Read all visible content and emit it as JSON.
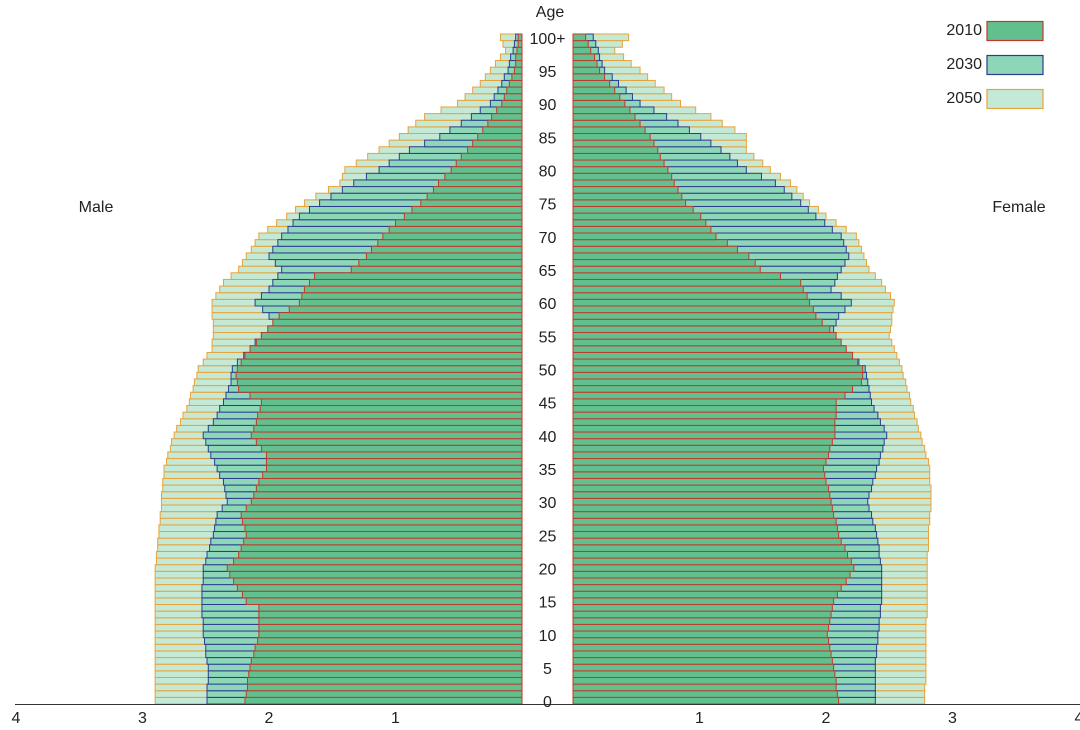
{
  "chart_data": {
    "type": "population_pyramid",
    "ylabel": "Age",
    "male_label": "Male",
    "female_label": "Female",
    "xlim": [
      0,
      4
    ],
    "xticks": [
      1,
      2,
      3,
      4
    ],
    "legend": "top-right",
    "categories": [
      "0",
      null,
      null,
      null,
      null,
      "5",
      null,
      null,
      null,
      null,
      "10",
      null,
      null,
      null,
      null,
      "15",
      null,
      null,
      null,
      null,
      "20",
      null,
      null,
      null,
      null,
      "25",
      null,
      null,
      null,
      null,
      "30",
      null,
      null,
      null,
      null,
      "35",
      null,
      null,
      null,
      null,
      "40",
      null,
      null,
      null,
      null,
      "45",
      null,
      null,
      null,
      null,
      "50",
      null,
      null,
      null,
      null,
      "55",
      null,
      null,
      null,
      null,
      "60",
      null,
      null,
      null,
      null,
      "65",
      null,
      null,
      null,
      null,
      "70",
      null,
      null,
      null,
      null,
      "75",
      null,
      null,
      null,
      null,
      "80",
      null,
      null,
      null,
      null,
      "85",
      null,
      null,
      null,
      null,
      "90",
      null,
      null,
      null,
      null,
      "95",
      null,
      null,
      null,
      null,
      "100+"
    ],
    "series": [
      {
        "name": "2010",
        "color": "#62c08f",
        "edge": "#c0392b",
        "male": [
          2.19,
          2.18,
          2.17,
          2.17,
          2.16,
          2.15,
          2.14,
          2.12,
          2.11,
          2.09,
          2.08,
          2.08,
          2.08,
          2.08,
          2.08,
          2.18,
          2.21,
          2.25,
          2.28,
          2.31,
          2.33,
          2.28,
          2.24,
          2.22,
          2.2,
          2.18,
          2.19,
          2.21,
          2.22,
          2.18,
          2.14,
          2.12,
          2.1,
          2.08,
          2.05,
          2.02,
          2.02,
          2.02,
          2.06,
          2.1,
          2.14,
          2.12,
          2.1,
          2.09,
          2.07,
          2.06,
          2.15,
          2.24,
          2.25,
          2.26,
          2.25,
          2.22,
          2.19,
          2.15,
          2.1,
          2.06,
          2.01,
          1.97,
          1.92,
          1.84,
          1.76,
          1.74,
          1.72,
          1.68,
          1.64,
          1.35,
          1.29,
          1.23,
          1.19,
          1.14,
          1.1,
          1.05,
          1.0,
          0.93,
          0.87,
          0.8,
          0.75,
          0.7,
          0.66,
          0.61,
          0.56,
          0.52,
          0.48,
          0.43,
          0.39,
          0.35,
          0.31,
          0.27,
          0.24,
          0.2,
          0.16,
          0.14,
          0.12,
          0.1,
          0.08,
          0.06,
          0.05,
          0.05,
          0.04,
          0.03,
          0.03
        ],
        "female": [
          2.1,
          2.09,
          2.08,
          2.08,
          2.07,
          2.06,
          2.05,
          2.04,
          2.03,
          2.02,
          2.01,
          2.02,
          2.03,
          2.04,
          2.05,
          2.06,
          2.09,
          2.12,
          2.16,
          2.19,
          2.22,
          2.2,
          2.17,
          2.15,
          2.12,
          2.1,
          2.09,
          2.08,
          2.06,
          2.05,
          2.04,
          2.03,
          2.02,
          2.0,
          1.99,
          1.98,
          2.0,
          2.02,
          2.03,
          2.05,
          2.07,
          2.07,
          2.07,
          2.08,
          2.08,
          2.08,
          2.15,
          2.21,
          2.28,
          2.29,
          2.29,
          2.25,
          2.21,
          2.16,
          2.12,
          2.08,
          2.03,
          1.97,
          1.92,
          1.9,
          1.87,
          1.85,
          1.82,
          1.8,
          1.64,
          1.48,
          1.44,
          1.39,
          1.3,
          1.22,
          1.13,
          1.09,
          1.05,
          1.01,
          0.95,
          0.89,
          0.86,
          0.83,
          0.8,
          0.78,
          0.75,
          0.72,
          0.69,
          0.67,
          0.64,
          0.61,
          0.57,
          0.53,
          0.49,
          0.45,
          0.41,
          0.37,
          0.33,
          0.29,
          0.25,
          0.21,
          0.19,
          0.17,
          0.14,
          0.12,
          0.1
        ]
      },
      {
        "name": "2030",
        "color": "#8dd6b7",
        "edge": "#2b3d8f",
        "male": [
          2.49,
          2.49,
          2.49,
          2.48,
          2.48,
          2.48,
          2.49,
          2.5,
          2.5,
          2.51,
          2.52,
          2.52,
          2.52,
          2.53,
          2.53,
          2.53,
          2.53,
          2.53,
          2.52,
          2.52,
          2.52,
          2.5,
          2.49,
          2.47,
          2.46,
          2.44,
          2.43,
          2.42,
          2.41,
          2.37,
          2.33,
          2.34,
          2.35,
          2.36,
          2.39,
          2.41,
          2.43,
          2.46,
          2.48,
          2.5,
          2.52,
          2.48,
          2.44,
          2.41,
          2.39,
          2.36,
          2.34,
          2.32,
          2.3,
          2.3,
          2.29,
          2.25,
          2.2,
          2.15,
          2.11,
          2.06,
          2.0,
          1.94,
          2.0,
          2.05,
          2.11,
          2.06,
          2.0,
          1.97,
          1.93,
          1.9,
          1.95,
          2.0,
          1.97,
          1.93,
          1.9,
          1.85,
          1.81,
          1.76,
          1.68,
          1.6,
          1.51,
          1.42,
          1.33,
          1.23,
          1.13,
          1.05,
          0.97,
          0.89,
          0.77,
          0.65,
          0.57,
          0.48,
          0.4,
          0.33,
          0.25,
          0.22,
          0.19,
          0.16,
          0.14,
          0.11,
          0.1,
          0.09,
          0.07,
          0.06,
          0.05
        ],
        "female": [
          2.39,
          2.39,
          2.39,
          2.39,
          2.39,
          2.39,
          2.39,
          2.4,
          2.4,
          2.41,
          2.41,
          2.42,
          2.42,
          2.43,
          2.43,
          2.44,
          2.44,
          2.44,
          2.44,
          2.44,
          2.44,
          2.43,
          2.42,
          2.42,
          2.41,
          2.4,
          2.39,
          2.37,
          2.36,
          2.34,
          2.33,
          2.34,
          2.36,
          2.37,
          2.39,
          2.4,
          2.42,
          2.43,
          2.45,
          2.46,
          2.48,
          2.46,
          2.43,
          2.41,
          2.38,
          2.36,
          2.35,
          2.34,
          2.33,
          2.32,
          2.31,
          2.26,
          2.2,
          2.15,
          2.09,
          2.04,
          2.06,
          2.08,
          2.1,
          2.15,
          2.2,
          2.12,
          2.04,
          2.07,
          2.09,
          2.12,
          2.15,
          2.18,
          2.16,
          2.14,
          2.12,
          2.05,
          1.99,
          1.92,
          1.86,
          1.8,
          1.73,
          1.67,
          1.6,
          1.49,
          1.37,
          1.3,
          1.24,
          1.17,
          1.09,
          1.01,
          0.92,
          0.83,
          0.74,
          0.64,
          0.53,
          0.47,
          0.42,
          0.36,
          0.31,
          0.25,
          0.23,
          0.21,
          0.2,
          0.18,
          0.16
        ]
      },
      {
        "name": "2050",
        "color": "#c4ead7",
        "edge": "#e8a23a",
        "male": [
          2.9,
          2.9,
          2.9,
          2.9,
          2.9,
          2.9,
          2.9,
          2.9,
          2.9,
          2.9,
          2.9,
          2.9,
          2.9,
          2.9,
          2.9,
          2.9,
          2.9,
          2.9,
          2.9,
          2.9,
          2.9,
          2.89,
          2.89,
          2.88,
          2.88,
          2.87,
          2.87,
          2.86,
          2.86,
          2.85,
          2.85,
          2.85,
          2.84,
          2.84,
          2.83,
          2.83,
          2.81,
          2.8,
          2.78,
          2.77,
          2.75,
          2.73,
          2.7,
          2.68,
          2.65,
          2.63,
          2.62,
          2.6,
          2.59,
          2.57,
          2.56,
          2.52,
          2.49,
          2.45,
          2.45,
          2.44,
          2.44,
          2.44,
          2.45,
          2.45,
          2.45,
          2.42,
          2.39,
          2.36,
          2.3,
          2.24,
          2.21,
          2.18,
          2.14,
          2.11,
          2.08,
          2.01,
          1.94,
          1.86,
          1.79,
          1.72,
          1.63,
          1.53,
          1.44,
          1.42,
          1.4,
          1.31,
          1.22,
          1.13,
          1.05,
          0.97,
          0.9,
          0.84,
          0.77,
          0.64,
          0.51,
          0.45,
          0.39,
          0.33,
          0.29,
          0.25,
          0.21,
          0.17,
          0.13,
          0.15,
          0.17
        ],
        "female": [
          2.78,
          2.78,
          2.78,
          2.79,
          2.79,
          2.79,
          2.79,
          2.79,
          2.79,
          2.79,
          2.79,
          2.79,
          2.79,
          2.8,
          2.8,
          2.8,
          2.8,
          2.8,
          2.8,
          2.8,
          2.8,
          2.8,
          2.8,
          2.81,
          2.81,
          2.81,
          2.81,
          2.82,
          2.82,
          2.83,
          2.83,
          2.83,
          2.83,
          2.82,
          2.82,
          2.82,
          2.81,
          2.79,
          2.78,
          2.76,
          2.75,
          2.73,
          2.72,
          2.7,
          2.69,
          2.67,
          2.66,
          2.64,
          2.63,
          2.61,
          2.6,
          2.58,
          2.56,
          2.54,
          2.52,
          2.5,
          2.51,
          2.52,
          2.52,
          2.53,
          2.54,
          2.51,
          2.47,
          2.44,
          2.39,
          2.34,
          2.32,
          2.3,
          2.28,
          2.26,
          2.24,
          2.16,
          2.08,
          2.0,
          1.94,
          1.87,
          1.82,
          1.77,
          1.72,
          1.64,
          1.56,
          1.5,
          1.43,
          1.37,
          1.37,
          1.37,
          1.28,
          1.18,
          1.09,
          0.97,
          0.85,
          0.78,
          0.72,
          0.65,
          0.59,
          0.53,
          0.46,
          0.4,
          0.33,
          0.39,
          0.44
        ]
      }
    ]
  }
}
